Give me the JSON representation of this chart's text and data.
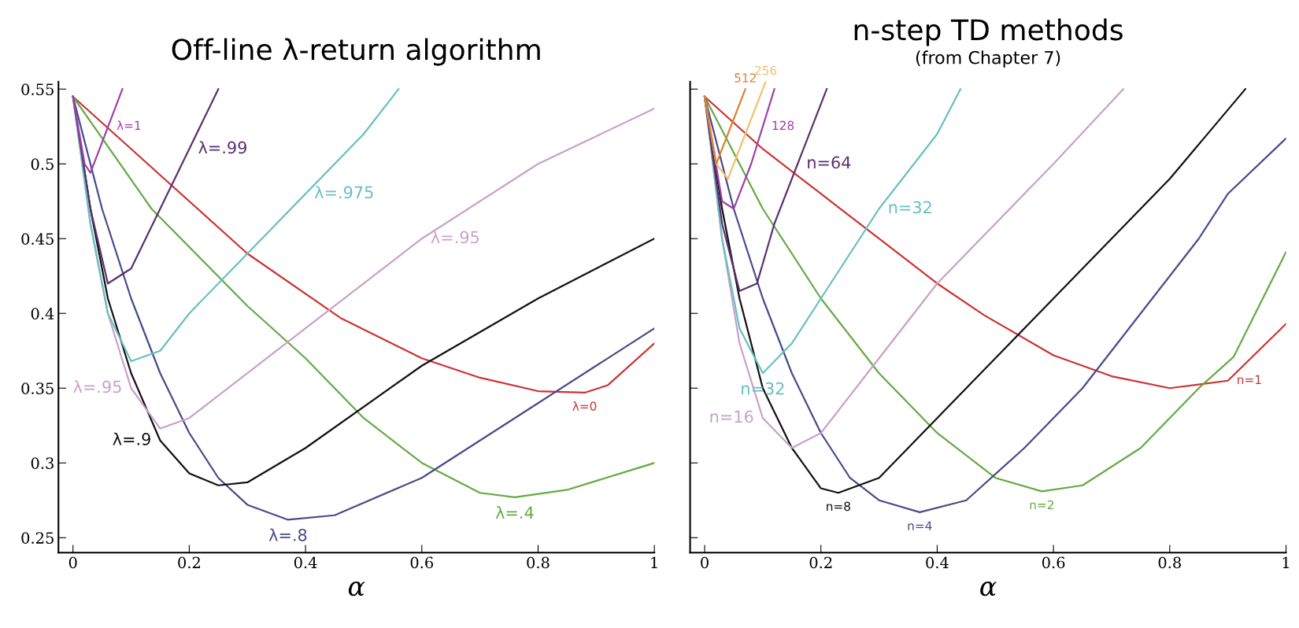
{
  "chart_data": [
    {
      "type": "line",
      "title": "Off-line λ-return algorithm",
      "xlabel": "α",
      "xlim": [
        -0.025,
        1.0
      ],
      "ylim": [
        0.24,
        0.555
      ],
      "xticks": [
        0,
        0.2,
        0.4,
        0.6,
        0.8,
        1
      ],
      "yticks": [
        0.25,
        0.3,
        0.35,
        0.4,
        0.45,
        0.5,
        0.55
      ],
      "grid": false,
      "legend": false,
      "marker": "none",
      "line_style": "solid",
      "series": [
        {
          "color": "#cc3333",
          "x": [
            0,
            0.1,
            0.2,
            0.3,
            0.46,
            0.6,
            0.7,
            0.8,
            0.88,
            0.92,
            1.0
          ],
          "values": [
            0.545,
            0.51,
            0.475,
            0.44,
            0.397,
            0.37,
            0.357,
            0.348,
            0.347,
            0.352,
            0.38
          ]
        },
        {
          "color": "#66aa44",
          "x": [
            0,
            0.135,
            0.3,
            0.4,
            0.5,
            0.6,
            0.7,
            0.76,
            0.85,
            1.0
          ],
          "values": [
            0.545,
            0.47,
            0.405,
            0.37,
            0.33,
            0.3,
            0.28,
            0.277,
            0.282,
            0.3
          ]
        },
        {
          "color": "#4a4a8a",
          "x": [
            0,
            0.05,
            0.1,
            0.15,
            0.2,
            0.25,
            0.3,
            0.37,
            0.45,
            0.6,
            0.8,
            1.0
          ],
          "values": [
            0.545,
            0.47,
            0.41,
            0.36,
            0.32,
            0.29,
            0.272,
            0.262,
            0.265,
            0.29,
            0.34,
            0.39
          ]
        },
        {
          "color": "#111111",
          "x": [
            0,
            0.03,
            0.06,
            0.1,
            0.15,
            0.2,
            0.25,
            0.3,
            0.4,
            0.6,
            0.8,
            1.0
          ],
          "values": [
            0.545,
            0.47,
            0.41,
            0.36,
            0.315,
            0.293,
            0.285,
            0.287,
            0.31,
            0.365,
            0.41,
            0.45
          ]
        },
        {
          "color": "#c9a0cc",
          "x": [
            0,
            0.03,
            0.06,
            0.1,
            0.15,
            0.2,
            0.3,
            0.4,
            0.6,
            0.8,
            1.0
          ],
          "values": [
            0.545,
            0.46,
            0.4,
            0.35,
            0.323,
            0.33,
            0.36,
            0.39,
            0.45,
            0.5,
            0.537
          ]
        },
        {
          "color": "#66c0c0",
          "x": [
            0,
            0.03,
            0.06,
            0.1,
            0.15,
            0.2,
            0.3,
            0.4,
            0.5,
            0.56
          ],
          "values": [
            0.545,
            0.46,
            0.4,
            0.368,
            0.375,
            0.4,
            0.44,
            0.48,
            0.52,
            0.55
          ]
        },
        {
          "color": "#5a3070",
          "x": [
            0,
            0.03,
            0.06,
            0.1,
            0.15,
            0.2,
            0.25
          ],
          "values": [
            0.545,
            0.47,
            0.42,
            0.43,
            0.47,
            0.51,
            0.55
          ]
        },
        {
          "color": "#a040a8",
          "x": [
            0,
            0.02,
            0.03,
            0.085
          ],
          "values": [
            0.545,
            0.5,
            0.494,
            0.55
          ]
        }
      ],
      "annotations": [
        {
          "text": "λ=1",
          "x": 0.06,
          "y": 0.525
        },
        {
          "text": "λ=.99",
          "x": 0.2,
          "y": 0.51
        },
        {
          "text": "λ=.975",
          "x": 0.4,
          "y": 0.48
        },
        {
          "text": "λ=.95",
          "x": 0.6,
          "y": 0.45
        },
        {
          "text": "λ=.95",
          "x": 0.1,
          "y": 0.35
        },
        {
          "text": "λ=0",
          "x": 0.88,
          "y": 0.347
        },
        {
          "text": "λ=.4",
          "x": 0.76,
          "y": 0.277
        },
        {
          "text": "λ=.8",
          "x": 0.37,
          "y": 0.262
        },
        {
          "text": "λ=.9",
          "x": 0.15,
          "y": 0.315
        }
      ]
    },
    {
      "type": "line",
      "title": "n-step TD methods",
      "subtitle": "(from Chapter 7)",
      "xlabel": "α",
      "tick_labels": "x",
      "xlim": [
        -0.025,
        1.0
      ],
      "ylim": [
        0.24,
        0.555
      ],
      "xticks": [
        0,
        0.2,
        0.4,
        0.6,
        0.8,
        1
      ],
      "yticks": [
        0.25,
        0.3,
        0.35,
        0.4,
        0.45,
        0.5,
        0.55
      ],
      "grid": false,
      "legend": false,
      "marker": "none",
      "line_style": "solid",
      "series": [
        {
          "color": "#cc3333",
          "x": [
            0,
            0.1,
            0.2,
            0.3,
            0.4,
            0.48,
            0.6,
            0.7,
            0.8,
            0.9,
            1.0
          ],
          "values": [
            0.545,
            0.51,
            0.48,
            0.45,
            0.42,
            0.399,
            0.372,
            0.358,
            0.35,
            0.355,
            0.393
          ]
        },
        {
          "color": "#66aa44",
          "x": [
            0,
            0.1,
            0.2,
            0.3,
            0.4,
            0.5,
            0.58,
            0.65,
            0.75,
            0.85,
            0.91,
            1.0
          ],
          "values": [
            0.545,
            0.47,
            0.41,
            0.36,
            0.32,
            0.29,
            0.281,
            0.285,
            0.31,
            0.35,
            0.371,
            0.441
          ]
        },
        {
          "color": "#4a4a8a",
          "x": [
            0,
            0.05,
            0.1,
            0.15,
            0.2,
            0.25,
            0.3,
            0.37,
            0.45,
            0.55,
            0.65,
            0.75,
            0.85,
            0.9,
            1.0
          ],
          "values": [
            0.545,
            0.47,
            0.41,
            0.36,
            0.32,
            0.29,
            0.275,
            0.267,
            0.275,
            0.31,
            0.35,
            0.4,
            0.45,
            0.48,
            0.517
          ]
        },
        {
          "color": "#111111",
          "x": [
            0,
            0.03,
            0.06,
            0.1,
            0.15,
            0.2,
            0.23,
            0.3,
            0.4,
            0.5,
            0.6,
            0.7,
            0.8,
            0.93
          ],
          "values": [
            0.545,
            0.47,
            0.41,
            0.35,
            0.31,
            0.283,
            0.28,
            0.29,
            0.33,
            0.37,
            0.41,
            0.45,
            0.49,
            0.55
          ]
        },
        {
          "color": "#c9a0cc",
          "x": [
            0,
            0.03,
            0.06,
            0.1,
            0.15,
            0.2,
            0.3,
            0.4,
            0.5,
            0.6,
            0.72
          ],
          "values": [
            0.545,
            0.45,
            0.38,
            0.33,
            0.31,
            0.32,
            0.37,
            0.42,
            0.46,
            0.5,
            0.55
          ]
        },
        {
          "color": "#66c0c0",
          "x": [
            0,
            0.03,
            0.06,
            0.1,
            0.15,
            0.2,
            0.3,
            0.4,
            0.44
          ],
          "values": [
            0.545,
            0.45,
            0.39,
            0.36,
            0.38,
            0.41,
            0.47,
            0.52,
            0.55
          ]
        },
        {
          "color": "#5a3070",
          "x": [
            0,
            0.03,
            0.06,
            0.09,
            0.12,
            0.16,
            0.21
          ],
          "values": [
            0.545,
            0.46,
            0.415,
            0.42,
            0.46,
            0.5,
            0.55
          ]
        },
        {
          "color": "#a040a8",
          "x": [
            0,
            0.03,
            0.05,
            0.08,
            0.12
          ],
          "values": [
            0.545,
            0.475,
            0.47,
            0.5,
            0.55
          ]
        },
        {
          "color": "#f0c070",
          "x": [
            0,
            0.02,
            0.04,
            0.07,
            0.105
          ],
          "values": [
            0.545,
            0.5,
            0.49,
            0.52,
            0.555
          ]
        },
        {
          "color": "#e08030",
          "x": [
            0,
            0.02,
            0.05,
            0.07
          ],
          "values": [
            0.545,
            0.5,
            0.53,
            0.55
          ]
        }
      ],
      "annotations": [
        {
          "text": "512",
          "x": 0.07,
          "y": 0.55
        },
        {
          "text": "256",
          "x": 0.105,
          "y": 0.555
        },
        {
          "text": "128",
          "x": 0.1,
          "y": 0.525
        },
        {
          "text": "n=64",
          "x": 0.16,
          "y": 0.5
        },
        {
          "text": "n=32",
          "x": 0.3,
          "y": 0.47
        },
        {
          "text": "n=32",
          "x": 0.1,
          "y": 0.36
        },
        {
          "text": "n=16",
          "x": 0.1,
          "y": 0.33
        },
        {
          "text": "n=8",
          "x": 0.23,
          "y": 0.28
        },
        {
          "text": "n=4",
          "x": 0.37,
          "y": 0.267
        },
        {
          "text": "n=2",
          "x": 0.58,
          "y": 0.281
        },
        {
          "text": "n=1",
          "x": 0.9,
          "y": 0.355
        }
      ]
    }
  ]
}
